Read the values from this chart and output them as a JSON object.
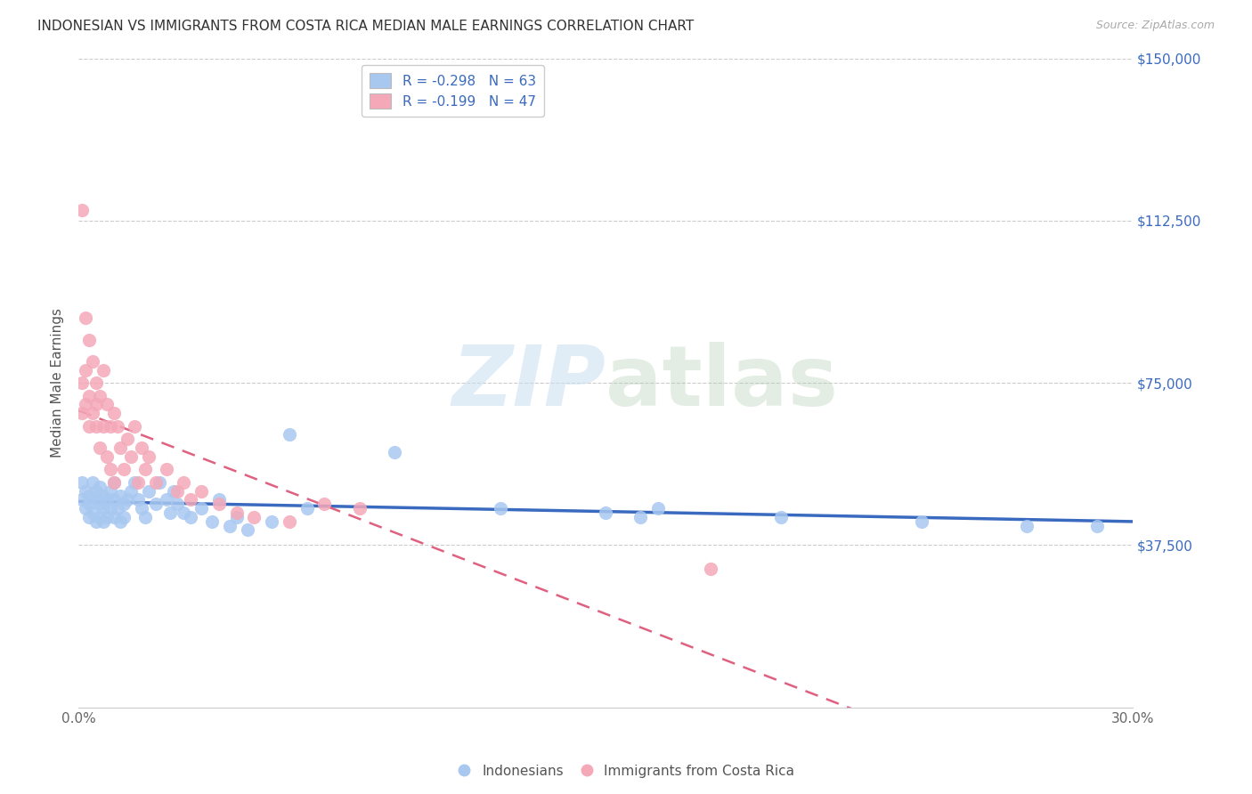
{
  "title": "INDONESIAN VS IMMIGRANTS FROM COSTA RICA MEDIAN MALE EARNINGS CORRELATION CHART",
  "source": "Source: ZipAtlas.com",
  "ylabel": "Median Male Earnings",
  "x_min": 0.0,
  "x_max": 0.3,
  "y_min": 0,
  "y_max": 150000,
  "yticks": [
    0,
    37500,
    75000,
    112500,
    150000
  ],
  "ytick_labels": [
    "",
    "$37,500",
    "$75,000",
    "$112,500",
    "$150,000"
  ],
  "xticks": [
    0.0,
    0.05,
    0.1,
    0.15,
    0.2,
    0.25,
    0.3
  ],
  "xtick_labels": [
    "0.0%",
    "",
    "",
    "",
    "",
    "",
    "30.0%"
  ],
  "legend_r1": "R = -0.298   N = 63",
  "legend_r2": "R = -0.199   N = 47",
  "color_blue": "#a8c8f0",
  "color_pink": "#f4a8b8",
  "color_trendline_blue": "#3a6abf",
  "color_trendline_pink": "#e06080",
  "watermark_zip": "ZIP",
  "watermark_atlas": "atlas",
  "indonesians_x": [
    0.001,
    0.001,
    0.002,
    0.002,
    0.003,
    0.003,
    0.003,
    0.004,
    0.004,
    0.005,
    0.005,
    0.005,
    0.006,
    0.006,
    0.006,
    0.007,
    0.007,
    0.007,
    0.008,
    0.008,
    0.009,
    0.009,
    0.01,
    0.01,
    0.01,
    0.011,
    0.012,
    0.012,
    0.013,
    0.013,
    0.014,
    0.015,
    0.016,
    0.017,
    0.018,
    0.019,
    0.02,
    0.022,
    0.023,
    0.025,
    0.026,
    0.027,
    0.028,
    0.03,
    0.032,
    0.035,
    0.038,
    0.04,
    0.043,
    0.045,
    0.048,
    0.055,
    0.06,
    0.065,
    0.09,
    0.12,
    0.15,
    0.16,
    0.165,
    0.2,
    0.24,
    0.27,
    0.29
  ],
  "indonesians_y": [
    52000,
    48000,
    50000,
    46000,
    49000,
    44000,
    47000,
    52000,
    45000,
    48000,
    43000,
    50000,
    47000,
    44000,
    51000,
    46000,
    43000,
    49000,
    48000,
    44000,
    50000,
    46000,
    52000,
    44000,
    48000,
    46000,
    49000,
    43000,
    47000,
    44000,
    48000,
    50000,
    52000,
    48000,
    46000,
    44000,
    50000,
    47000,
    52000,
    48000,
    45000,
    50000,
    47000,
    45000,
    44000,
    46000,
    43000,
    48000,
    42000,
    44000,
    41000,
    43000,
    63000,
    46000,
    59000,
    46000,
    45000,
    44000,
    46000,
    44000,
    43000,
    42000,
    42000
  ],
  "costa_rica_x": [
    0.001,
    0.001,
    0.001,
    0.002,
    0.002,
    0.002,
    0.003,
    0.003,
    0.003,
    0.004,
    0.004,
    0.005,
    0.005,
    0.005,
    0.006,
    0.006,
    0.007,
    0.007,
    0.008,
    0.008,
    0.009,
    0.009,
    0.01,
    0.01,
    0.011,
    0.012,
    0.013,
    0.014,
    0.015,
    0.016,
    0.017,
    0.018,
    0.019,
    0.02,
    0.022,
    0.025,
    0.028,
    0.03,
    0.032,
    0.035,
    0.04,
    0.045,
    0.05,
    0.06,
    0.07,
    0.08,
    0.18
  ],
  "costa_rica_y": [
    115000,
    75000,
    68000,
    90000,
    78000,
    70000,
    85000,
    72000,
    65000,
    80000,
    68000,
    75000,
    65000,
    70000,
    72000,
    60000,
    78000,
    65000,
    70000,
    58000,
    65000,
    55000,
    68000,
    52000,
    65000,
    60000,
    55000,
    62000,
    58000,
    65000,
    52000,
    60000,
    55000,
    58000,
    52000,
    55000,
    50000,
    52000,
    48000,
    50000,
    47000,
    45000,
    44000,
    43000,
    47000,
    46000,
    32000
  ]
}
